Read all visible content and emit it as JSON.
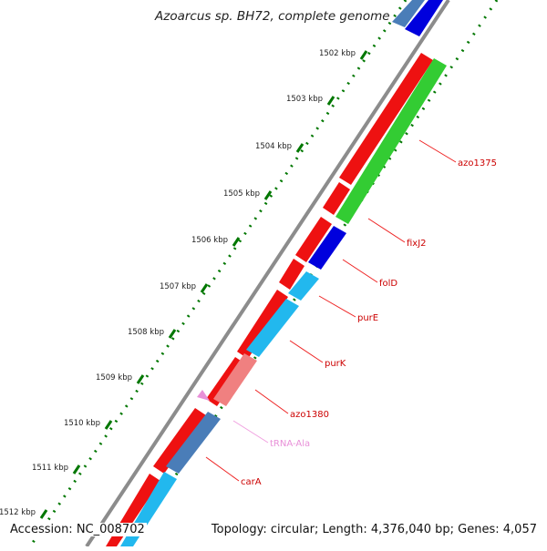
{
  "title": "Azoarcus sp. BH72, complete genome",
  "footer": {
    "accession": "Accession: NC_008702",
    "summary": "Topology: circular; Length: 4,376,040 bp; Genes: 4,057"
  },
  "ticks": [
    "1502 kbp",
    "1503 kbp",
    "1504 kbp",
    "1505 kbp",
    "1506 kbp",
    "1507 kbp",
    "1508 kbp",
    "1509 kbp",
    "1510 kbp",
    "1511 kbp",
    "1512 kbp"
  ],
  "genes": [
    {
      "label": "azo1375",
      "color": "#cc0000"
    },
    {
      "label": "fixJ2",
      "color": "#cc0000"
    },
    {
      "label": "folD",
      "color": "#cc0000"
    },
    {
      "label": "purE",
      "color": "#cc0000"
    },
    {
      "label": "purK",
      "color": "#cc0000"
    },
    {
      "label": "azo1380",
      "color": "#cc0000"
    },
    {
      "label": "tRNA-Ala",
      "color": "#e890d8"
    },
    {
      "label": "carA",
      "color": "#cc0000"
    }
  ],
  "colors": {
    "backbone": "#8c8c8c",
    "forward_cds": "#ee1111",
    "green_cds": "#33cc33",
    "blue_cds": "#0000dd",
    "cyan_cds": "#22b8ee",
    "pink_cds": "#f08080",
    "steel_cds": "#4a7db8",
    "tick_green": "#007700"
  }
}
